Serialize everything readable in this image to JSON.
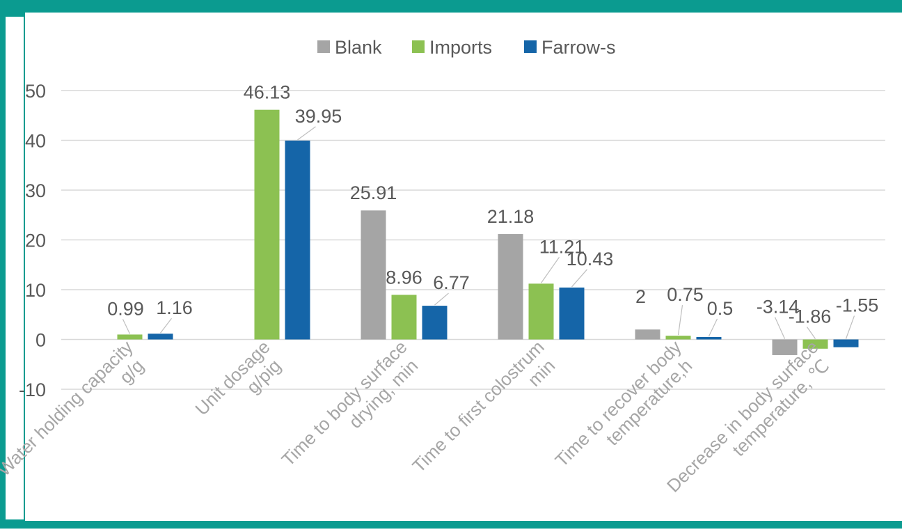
{
  "chart_data": {
    "type": "bar",
    "categories": [
      [
        "Water holding capacity",
        "g/g"
      ],
      [
        "Unit dosage",
        "g/pig"
      ],
      [
        "Time to body surface",
        "drying, min"
      ],
      [
        "Time to first colostrum",
        "min"
      ],
      [
        "Time to recover body",
        "temperature,h"
      ],
      [
        "Decrease in body surface",
        "temperature, ℃"
      ]
    ],
    "series": [
      {
        "name": "Blank",
        "color": "#a5a5a5",
        "values": [
          null,
          null,
          25.91,
          21.18,
          2,
          -3.14
        ]
      },
      {
        "name": "Imports",
        "color": "#8cc152",
        "values": [
          0.99,
          46.13,
          8.96,
          11.21,
          0.75,
          -1.86
        ]
      },
      {
        "name": "Farrow-s",
        "color": "#1565a8",
        "values": [
          1.16,
          39.95,
          6.77,
          10.43,
          0.5,
          -1.55
        ]
      }
    ],
    "title": "",
    "xlabel": "",
    "ylabel": "",
    "ylim": [
      -10,
      50
    ],
    "yticks": [
      50,
      40,
      30,
      20,
      10,
      0,
      -10
    ],
    "grid": true,
    "legend": "top-center"
  },
  "colors": {
    "frame": "#0b9b90",
    "grid": "#d9d9d9",
    "axis_text": "#595959",
    "category_text": "#a6a6a6"
  }
}
